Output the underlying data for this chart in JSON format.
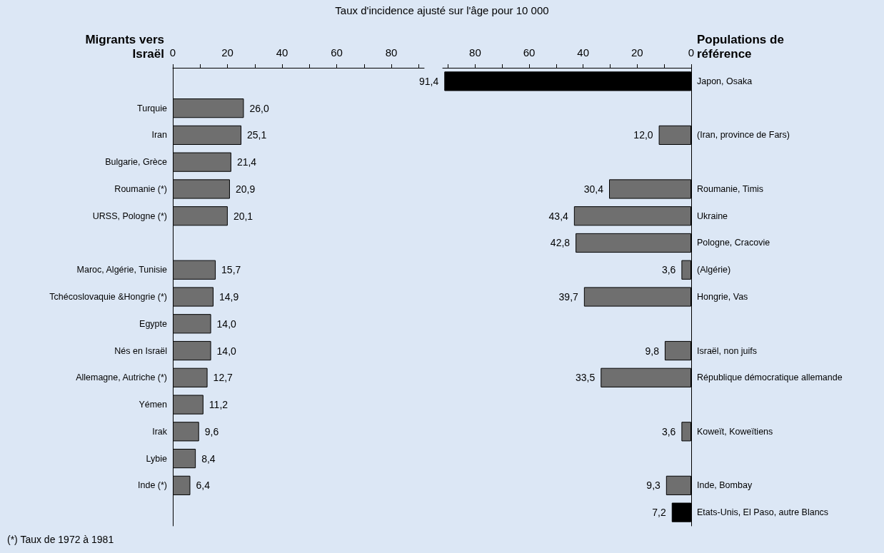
{
  "chart_data": [
    {
      "type": "bar",
      "orientation": "horizontal",
      "xlabel": "Taux d'incidence ajusté sur l'âge pour 10 000",
      "ylabel": "Migrants vers Israël",
      "categories": [
        null,
        "Turquie",
        "Iran",
        "Bulgarie, Grèce",
        "Roumanie (*)",
        "URSS, Pologne (*)",
        null,
        "Maroc, Algérie, Tunisie",
        "Tchécoslovaquie &Hongrie (*)",
        "Egypte",
        "Nés en Israël",
        "Allemagne, Autriche (*)",
        "Yémen",
        "Irak",
        "Lybie",
        "Inde (*)",
        null
      ],
      "values": [
        null,
        26.0,
        25.1,
        21.4,
        20.9,
        20.1,
        null,
        15.7,
        14.9,
        14.0,
        14.0,
        12.7,
        11.2,
        9.6,
        8.4,
        6.4,
        null
      ],
      "value_labels": [
        null,
        "26,0",
        "25,1",
        "21,4",
        "20,9",
        "20,1",
        null,
        "15,7",
        "14,9",
        "14,0",
        "14,0",
        "12,7",
        "11,2",
        "9,6",
        "8,4",
        "6,4",
        null
      ],
      "colors": [
        null,
        "#6f6f6f",
        "#6f6f6f",
        "#6f6f6f",
        "#6f6f6f",
        "#6f6f6f",
        null,
        "#6f6f6f",
        "#6f6f6f",
        "#6f6f6f",
        "#6f6f6f",
        "#6f6f6f",
        "#6f6f6f",
        "#6f6f6f",
        "#6f6f6f",
        "#6f6f6f",
        null
      ],
      "xlim": [
        0,
        92
      ],
      "xticks": [
        0,
        {
          "value": 10,
          "label": null
        },
        20,
        {
          "value": 30,
          "label": null
        },
        40,
        {
          "value": 50,
          "label": null
        },
        60,
        {
          "value": 70,
          "label": null
        },
        80,
        {
          "value": 90,
          "label": null
        }
      ],
      "annotations": [
        "(*) Taux de 1972 à 1981"
      ]
    },
    {
      "type": "bar",
      "orientation": "horizontal",
      "ylabel": "Populations de référence",
      "categories": [
        "Japon, Osaka",
        null,
        "(Iran, province de Fars)",
        null,
        "Roumanie, Timis",
        "Ukraine",
        "Pologne, Cracovie",
        "(Algérie)",
        "Hongrie, Vas",
        null,
        "Israël, non juifs",
        "République démocratique allemande",
        null,
        "Koweït, Koweïtiens",
        null,
        "Inde, Bombay",
        "Etats-Unis, El Paso, autre Blancs"
      ],
      "values": [
        91.4,
        null,
        12.0,
        null,
        30.4,
        43.4,
        42.8,
        3.6,
        39.7,
        null,
        9.8,
        33.5,
        null,
        3.6,
        null,
        9.3,
        7.2
      ],
      "value_labels": [
        "91,4",
        null,
        "12,0",
        null,
        "30,4",
        "43,4",
        "42,8",
        "3,6",
        "39,7",
        null,
        "9,8",
        "33,5",
        null,
        "3,6",
        null,
        "9,3",
        "7,2"
      ],
      "colors": [
        "#000000",
        null,
        "#6f6f6f",
        null,
        "#6f6f6f",
        "#6f6f6f",
        "#6f6f6f",
        "#6f6f6f",
        "#6f6f6f",
        null,
        "#6f6f6f",
        "#6f6f6f",
        null,
        "#6f6f6f",
        null,
        "#6f6f6f",
        "#000000"
      ],
      "xlim": [
        92,
        0
      ],
      "xticks": [
        0,
        {
          "value": 10,
          "label": null
        },
        20,
        {
          "value": 30,
          "label": null
        },
        40,
        {
          "value": 50,
          "label": null
        },
        60,
        {
          "value": 70,
          "label": null
        },
        80,
        {
          "value": 90,
          "label": null
        }
      ]
    }
  ]
}
